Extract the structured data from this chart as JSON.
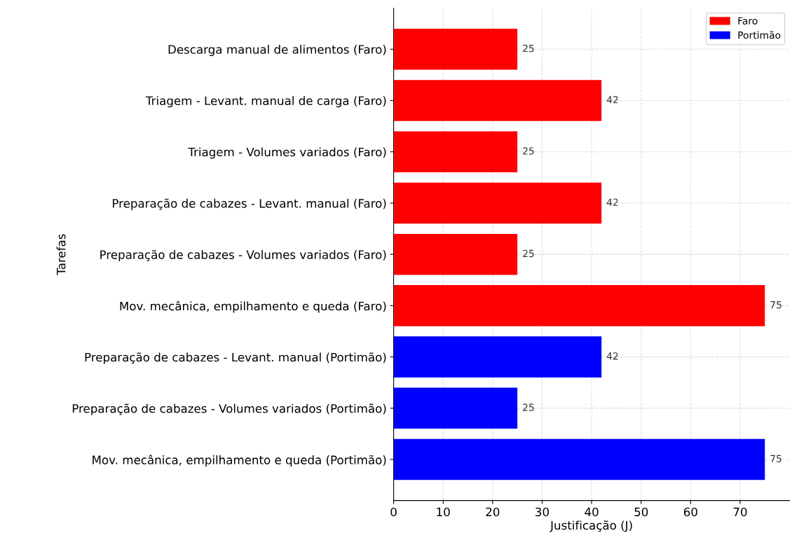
{
  "chart_data": {
    "type": "bar",
    "orientation": "horizontal",
    "xlabel": "Justificação (J)",
    "ylabel": "Tarefas",
    "categories": [
      "Descarga manual de alimentos (Faro)",
      "Triagem - Levant. manual de carga (Faro)",
      "Triagem - Volumes variados (Faro)",
      "Preparação de cabazes - Levant. manual (Faro)",
      "Preparação de cabazes - Volumes variados (Faro)",
      "Mov. mecânica, empilhamento e queda (Faro)",
      "Preparação de cabazes - Levant. manual (Portimão)",
      "Preparação de cabazes - Volumes variados (Portimão)",
      "Mov. mecânica, empilhamento e queda (Portimão)"
    ],
    "series": [
      {
        "name": "Faro",
        "color": "#ff0000",
        "values": [
          25,
          42,
          25,
          42,
          25,
          75,
          null,
          null,
          null
        ]
      },
      {
        "name": "Portimão",
        "color": "#0000ff",
        "values": [
          null,
          null,
          null,
          null,
          null,
          null,
          42,
          25,
          75
        ]
      }
    ],
    "xlim": [
      0,
      80
    ],
    "xticks": [
      0,
      10,
      20,
      30,
      40,
      50,
      60,
      70
    ],
    "grid": true,
    "legend": "top right",
    "data_labels": true
  }
}
